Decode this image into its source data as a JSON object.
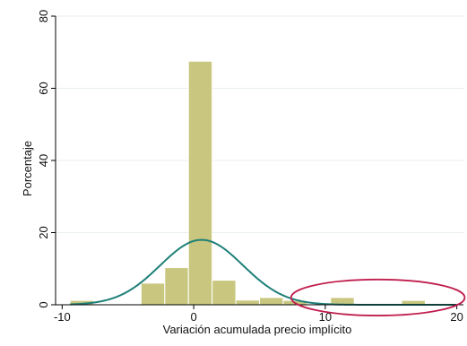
{
  "chart_data": {
    "type": "histogram",
    "title": "",
    "xlabel": "Variación acumulada precio implícito",
    "ylabel": "Porcentaje",
    "xlim": [
      -10.5,
      20.5
    ],
    "ylim": [
      0,
      80
    ],
    "x_ticks": [
      -10,
      0,
      10,
      20
    ],
    "y_ticks": [
      0,
      20,
      40,
      60,
      80
    ],
    "grid": "horizontal",
    "bin_width": 1.8,
    "bins": [
      {
        "start": -9.4,
        "end": -7.6,
        "value": 1.2
      },
      {
        "start": -7.6,
        "end": -5.8,
        "value": 0
      },
      {
        "start": -5.8,
        "end": -4.0,
        "value": 0
      },
      {
        "start": -4.0,
        "end": -2.2,
        "value": 6
      },
      {
        "start": -2.2,
        "end": -0.4,
        "value": 10.3
      },
      {
        "start": -0.4,
        "end": 1.4,
        "value": 67.5
      },
      {
        "start": 1.4,
        "end": 3.2,
        "value": 6.8
      },
      {
        "start": 3.2,
        "end": 5.0,
        "value": 1.3
      },
      {
        "start": 5.0,
        "end": 6.8,
        "value": 2.0
      },
      {
        "start": 6.8,
        "end": 8.6,
        "value": 1.2
      },
      {
        "start": 8.6,
        "end": 10.4,
        "value": 0
      },
      {
        "start": 10.4,
        "end": 12.2,
        "value": 2.0
      },
      {
        "start": 12.2,
        "end": 14.0,
        "value": 0
      },
      {
        "start": 14.0,
        "end": 15.8,
        "value": 0
      },
      {
        "start": 15.8,
        "end": 17.6,
        "value": 1.2
      }
    ],
    "normal_curve": {
      "mean": 0.6,
      "sd": 3.15,
      "scale": 18.0
    },
    "ellipse_annotation": {
      "cx": 14,
      "cy": 2.0,
      "rx": 6.6,
      "ry": 5.0
    },
    "colors": {
      "bar_fill": "#c9c77f",
      "bar_stroke": "#ffffff",
      "curve": "#1e8078",
      "ellipse": "#c01e4e",
      "grid": "#e8eeee",
      "axis": "#000000"
    }
  }
}
